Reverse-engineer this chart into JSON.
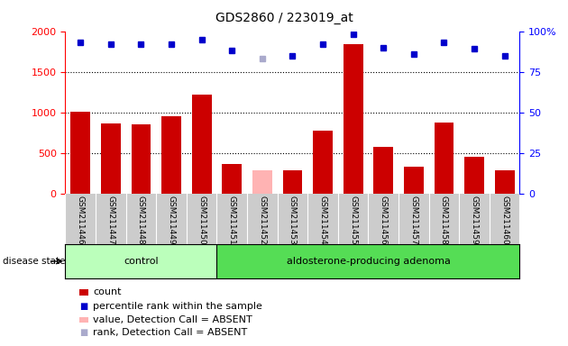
{
  "title": "GDS2860 / 223019_at",
  "samples": [
    "GSM211446",
    "GSM211447",
    "GSM211448",
    "GSM211449",
    "GSM211450",
    "GSM211451",
    "GSM211452",
    "GSM211453",
    "GSM211454",
    "GSM211455",
    "GSM211456",
    "GSM211457",
    "GSM211458",
    "GSM211459",
    "GSM211460"
  ],
  "counts": [
    1007,
    868,
    849,
    952,
    1215,
    368,
    290,
    287,
    775,
    1840,
    573,
    328,
    877,
    452,
    290
  ],
  "counts_absent": [
    null,
    null,
    null,
    null,
    null,
    null,
    290,
    null,
    null,
    null,
    null,
    null,
    null,
    null,
    null
  ],
  "percentile_ranks": [
    93,
    92,
    92,
    92,
    95,
    88,
    null,
    85,
    92,
    98,
    90,
    86,
    93,
    89,
    85
  ],
  "percentile_ranks_absent": [
    null,
    null,
    null,
    null,
    null,
    null,
    83,
    null,
    null,
    null,
    null,
    null,
    null,
    null,
    null
  ],
  "control_indices": [
    0,
    1,
    2,
    3,
    4
  ],
  "adenoma_indices": [
    5,
    6,
    7,
    8,
    9,
    10,
    11,
    12,
    13,
    14
  ],
  "ylim_left": [
    0,
    2000
  ],
  "ylim_right": [
    0,
    100
  ],
  "yticks_left": [
    0,
    500,
    1000,
    1500,
    2000
  ],
  "yticks_right": [
    0,
    25,
    50,
    75,
    100
  ],
  "bar_color": "#cc0000",
  "bar_absent_color": "#ffb3b3",
  "dot_color": "#0000cc",
  "dot_absent_color": "#aaaacc",
  "control_bg": "#bbffbb",
  "adenoma_bg": "#55dd55",
  "xlabel_bg": "#cccccc",
  "label_count": "count",
  "label_percentile": "percentile rank within the sample",
  "label_value_absent": "value, Detection Call = ABSENT",
  "label_rank_absent": "rank, Detection Call = ABSENT",
  "disease_state_label": "disease state",
  "control_label": "control",
  "adenoma_label": "aldosterone-producing adenoma",
  "title_fontsize": 10,
  "tick_fontsize": 8,
  "legend_fontsize": 8,
  "group_fontsize": 8
}
